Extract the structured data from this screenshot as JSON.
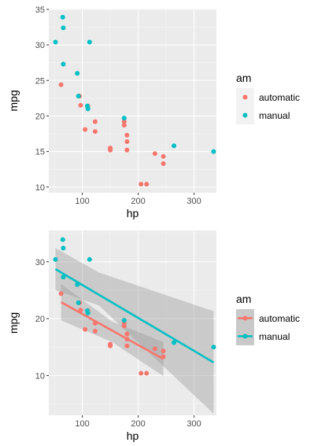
{
  "chart_data": [
    {
      "type": "scatter",
      "xlabel": "hp",
      "ylabel": "mpg",
      "xlim": [
        40,
        340
      ],
      "ylim": [
        9.2,
        35.1
      ],
      "x_ticks": [
        100,
        200,
        300
      ],
      "y_ticks": [
        10,
        15,
        20,
        25,
        30,
        35
      ],
      "grid": true,
      "legend": {
        "title": "am",
        "position": "right"
      },
      "series": [
        {
          "name": "automatic",
          "color": "#f8766d",
          "points": [
            [
              110,
              21.4
            ],
            [
              175,
              18.7
            ],
            [
              105,
              18.1
            ],
            [
              245,
              14.3
            ],
            [
              62,
              24.4
            ],
            [
              95,
              22.8
            ],
            [
              123,
              19.2
            ],
            [
              123,
              17.8
            ],
            [
              180,
              16.4
            ],
            [
              180,
              17.3
            ],
            [
              180,
              15.2
            ],
            [
              205,
              10.4
            ],
            [
              215,
              10.4
            ],
            [
              230,
              14.7
            ],
            [
              97,
              21.5
            ],
            [
              150,
              15.5
            ],
            [
              150,
              15.2
            ],
            [
              245,
              13.3
            ],
            [
              175,
              19.2
            ]
          ]
        },
        {
          "name": "manual",
          "color": "#00bfc4",
          "points": [
            [
              110,
              21.0
            ],
            [
              110,
              21.0
            ],
            [
              93,
              22.8
            ],
            [
              66,
              32.4
            ],
            [
              52,
              30.4
            ],
            [
              65,
              33.9
            ],
            [
              66,
              27.3
            ],
            [
              91,
              26.0
            ],
            [
              113,
              30.4
            ],
            [
              264,
              15.8
            ],
            [
              175,
              19.7
            ],
            [
              335,
              15.0
            ],
            [
              109,
              21.4
            ]
          ]
        }
      ]
    },
    {
      "type": "scatter",
      "xlabel": "hp",
      "ylabel": "mpg",
      "xlim": [
        40,
        340
      ],
      "ylim": [
        3,
        35.5
      ],
      "x_ticks": [
        100,
        200,
        300
      ],
      "y_ticks": [
        10,
        20,
        30
      ],
      "grid": true,
      "legend": {
        "title": "am",
        "position": "right"
      },
      "series": [
        {
          "name": "automatic",
          "color": "#f8766d",
          "points": [
            [
              110,
              21.4
            ],
            [
              175,
              18.7
            ],
            [
              105,
              18.1
            ],
            [
              245,
              14.3
            ],
            [
              62,
              24.4
            ],
            [
              95,
              22.8
            ],
            [
              123,
              19.2
            ],
            [
              123,
              17.8
            ],
            [
              180,
              16.4
            ],
            [
              180,
              17.3
            ],
            [
              180,
              15.2
            ],
            [
              205,
              10.4
            ],
            [
              215,
              10.4
            ],
            [
              230,
              14.7
            ],
            [
              97,
              21.5
            ],
            [
              150,
              15.5
            ],
            [
              150,
              15.2
            ],
            [
              245,
              13.3
            ],
            [
              175,
              19.2
            ]
          ],
          "fit": {
            "x": [
              62,
              245
            ],
            "y": [
              22.9,
              12.9
            ]
          },
          "band": {
            "x": [
              62,
              153,
              245
            ],
            "lower": [
              19.7,
              15.9,
              9.9
            ],
            "upper": [
              26.1,
              19.5,
              15.9
            ]
          }
        },
        {
          "name": "manual",
          "color": "#00bfc4",
          "points": [
            [
              110,
              21.0
            ],
            [
              110,
              21.0
            ],
            [
              93,
              22.8
            ],
            [
              66,
              32.4
            ],
            [
              52,
              30.4
            ],
            [
              65,
              33.9
            ],
            [
              66,
              27.3
            ],
            [
              91,
              26.0
            ],
            [
              113,
              30.4
            ],
            [
              264,
              15.8
            ],
            [
              175,
              19.7
            ],
            [
              335,
              15.0
            ],
            [
              109,
              21.4
            ]
          ],
          "fit": {
            "x": [
              52,
              335
            ],
            "y": [
              28.7,
              12.3
            ]
          },
          "band": {
            "x": [
              52,
              130,
              335
            ],
            "lower": [
              25.0,
              22.3,
              3.3
            ],
            "upper": [
              32.4,
              28.1,
              21.3
            ]
          }
        }
      ]
    }
  ]
}
